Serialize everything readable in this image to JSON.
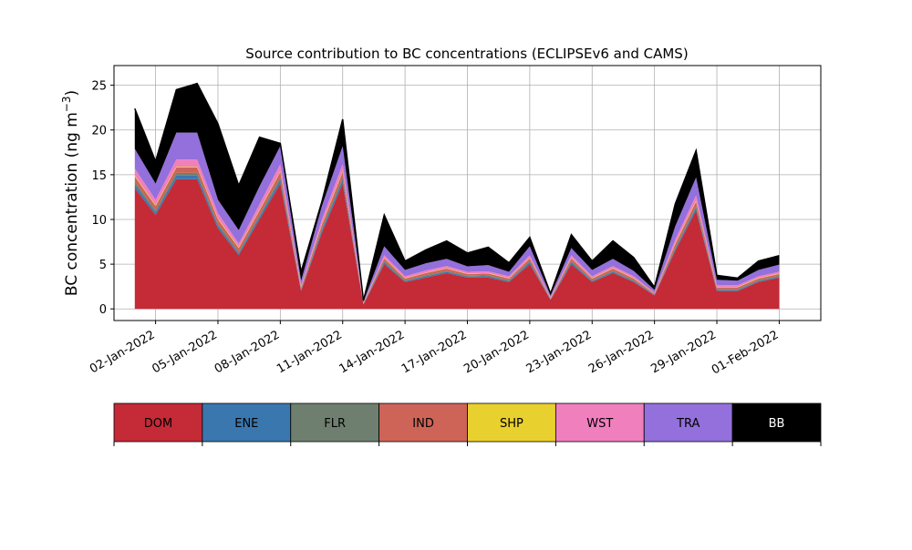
{
  "chart_data": {
    "type": "area",
    "stacked": true,
    "title": "Source contribution to BC concentrations (ECLIPSEv6 and CAMS)",
    "ylabel_main": "BC concentration (ng m",
    "ylabel_sup": "−3",
    "ylabel_close": ")",
    "xlabel": "",
    "ylim": [
      -1.3,
      27.2
    ],
    "xlim": [
      "2021-12-31",
      "2022-02-03"
    ],
    "yticks": [
      0,
      5,
      10,
      15,
      20,
      25
    ],
    "ytick_labels": [
      "0",
      "5",
      "10",
      "15",
      "20",
      "25"
    ],
    "xticks": [
      "2022-01-02",
      "2022-01-05",
      "2022-01-08",
      "2022-01-11",
      "2022-01-14",
      "2022-01-17",
      "2022-01-20",
      "2022-01-23",
      "2022-01-26",
      "2022-01-29",
      "2022-02-01"
    ],
    "xtick_labels": [
      "02-Jan-2022",
      "05-Jan-2022",
      "08-Jan-2022",
      "11-Jan-2022",
      "14-Jan-2022",
      "17-Jan-2022",
      "20-Jan-2022",
      "23-Jan-2022",
      "26-Jan-2022",
      "29-Jan-2022",
      "01-Feb-2022"
    ],
    "grid": true,
    "x_dates": [
      "2022-01-01",
      "2022-01-02",
      "2022-01-03",
      "2022-01-04",
      "2022-01-05",
      "2022-01-06",
      "2022-01-07",
      "2022-01-08",
      "2022-01-09",
      "2022-01-10",
      "2022-01-11",
      "2022-01-12",
      "2022-01-13",
      "2022-01-14",
      "2022-01-15",
      "2022-01-16",
      "2022-01-17",
      "2022-01-18",
      "2022-01-19",
      "2022-01-20",
      "2022-01-21",
      "2022-01-22",
      "2022-01-23",
      "2022-01-24",
      "2022-01-25",
      "2022-01-26",
      "2022-01-27",
      "2022-01-28",
      "2022-01-29",
      "2022-01-30",
      "2022-01-31",
      "2022-02-01"
    ],
    "series": [
      {
        "name": "DOM",
        "color": "#c52a37",
        "values": [
          13.5,
          10.5,
          14.5,
          14.5,
          9.0,
          6.0,
          10.0,
          14.0,
          2.0,
          8.5,
          14.0,
          0.5,
          5.0,
          3.0,
          3.5,
          4.0,
          3.5,
          3.5,
          3.0,
          5.0,
          1.0,
          5.0,
          3.0,
          4.0,
          3.0,
          1.5,
          6.5,
          11.0,
          2.0,
          2.0,
          3.0,
          3.5
        ]
      },
      {
        "name": "ENE",
        "color": "#3a77af",
        "values": [
          0.4,
          0.3,
          0.4,
          0.4,
          0.3,
          0.2,
          0.3,
          0.4,
          0.1,
          0.3,
          0.4,
          0.05,
          0.2,
          0.1,
          0.15,
          0.15,
          0.1,
          0.15,
          0.1,
          0.2,
          0.05,
          0.2,
          0.1,
          0.15,
          0.1,
          0.05,
          0.2,
          0.3,
          0.1,
          0.1,
          0.1,
          0.1
        ]
      },
      {
        "name": "FLR",
        "color": "#6e7f6f",
        "values": [
          0.3,
          0.2,
          0.3,
          0.3,
          0.2,
          0.2,
          0.2,
          0.3,
          0.1,
          0.2,
          0.3,
          0.05,
          0.15,
          0.1,
          0.1,
          0.1,
          0.1,
          0.1,
          0.1,
          0.15,
          0.05,
          0.15,
          0.1,
          0.1,
          0.1,
          0.05,
          0.15,
          0.2,
          0.1,
          0.1,
          0.1,
          0.1
        ]
      },
      {
        "name": "IND",
        "color": "#cd6457",
        "values": [
          0.6,
          0.5,
          0.6,
          0.6,
          0.5,
          0.4,
          0.5,
          0.6,
          0.2,
          0.4,
          0.6,
          0.05,
          0.3,
          0.2,
          0.25,
          0.25,
          0.2,
          0.2,
          0.2,
          0.3,
          0.1,
          0.3,
          0.2,
          0.25,
          0.2,
          0.1,
          0.4,
          0.5,
          0.2,
          0.2,
          0.2,
          0.2
        ]
      },
      {
        "name": "SHP",
        "color": "#e8d02f",
        "values": [
          0.1,
          0.1,
          0.1,
          0.1,
          0.1,
          0.1,
          0.1,
          0.1,
          0.05,
          0.1,
          0.1,
          0.02,
          0.05,
          0.05,
          0.05,
          0.05,
          0.05,
          0.05,
          0.05,
          0.05,
          0.02,
          0.05,
          0.05,
          0.05,
          0.05,
          0.02,
          0.1,
          0.1,
          0.05,
          0.05,
          0.05,
          0.05
        ]
      },
      {
        "name": "WST",
        "color": "#f07fbe",
        "values": [
          0.8,
          0.6,
          0.8,
          0.8,
          0.6,
          0.4,
          0.6,
          0.8,
          0.2,
          0.5,
          0.8,
          0.05,
          0.3,
          0.2,
          0.25,
          0.25,
          0.2,
          0.2,
          0.2,
          0.3,
          0.1,
          0.3,
          0.2,
          0.25,
          0.2,
          0.1,
          0.4,
          0.6,
          0.2,
          0.2,
          0.2,
          0.2
        ]
      },
      {
        "name": "TRA",
        "color": "#9370db",
        "values": [
          2.2,
          1.8,
          3.0,
          3.0,
          1.5,
          1.5,
          2.0,
          2.0,
          0.5,
          1.5,
          2.0,
          0.1,
          1.0,
          0.7,
          0.8,
          0.8,
          0.6,
          0.7,
          0.5,
          1.0,
          0.2,
          0.8,
          0.7,
          0.8,
          0.6,
          0.3,
          1.5,
          2.0,
          0.6,
          0.5,
          0.7,
          0.8
        ]
      },
      {
        "name": "BB",
        "color": "#000000",
        "values": [
          4.5,
          2.5,
          4.8,
          5.5,
          8.5,
          5.0,
          5.5,
          0.3,
          1.0,
          0.5,
          3.0,
          0.1,
          3.5,
          1.0,
          1.5,
          2.0,
          1.5,
          2.0,
          1.0,
          1.0,
          0.2,
          1.5,
          1.0,
          2.0,
          1.5,
          0.3,
          2.5,
          3.0,
          0.5,
          0.3,
          1.0,
          1.0
        ]
      }
    ]
  }
}
